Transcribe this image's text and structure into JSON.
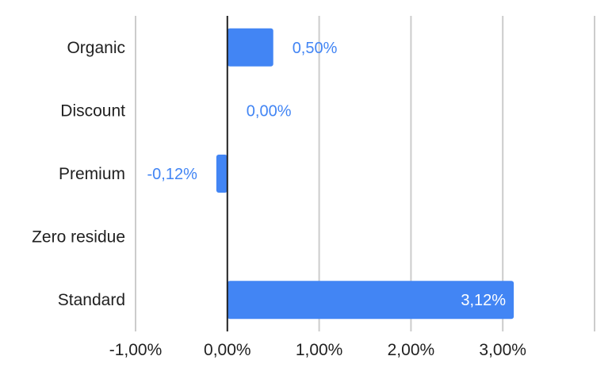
{
  "chart_data": {
    "type": "bar",
    "orientation": "horizontal",
    "categories": [
      "Organic",
      "Discount",
      "Premium",
      "Zero residue",
      "Standard"
    ],
    "values": [
      0.5,
      0.0,
      -0.12,
      null,
      3.12
    ],
    "data_labels": [
      "0,50%",
      "0,00%",
      "-0,12%",
      "",
      "3,12%"
    ],
    "xlim": [
      -1.0,
      4.0
    ],
    "x_ticks": [
      -1.0,
      0.0,
      1.0,
      2.0,
      3.0,
      4.0
    ],
    "x_tick_labels": [
      "-1,00%",
      "0,00%",
      "1,00%",
      "2,00%",
      "3,00%",
      ""
    ],
    "grid": true,
    "colors": {
      "bar": "#4285f4",
      "label_outside": "#4285f4",
      "label_inside": "#ffffff",
      "grid": "#cccccc",
      "zero_line": "#212121",
      "text": "#212121"
    }
  }
}
